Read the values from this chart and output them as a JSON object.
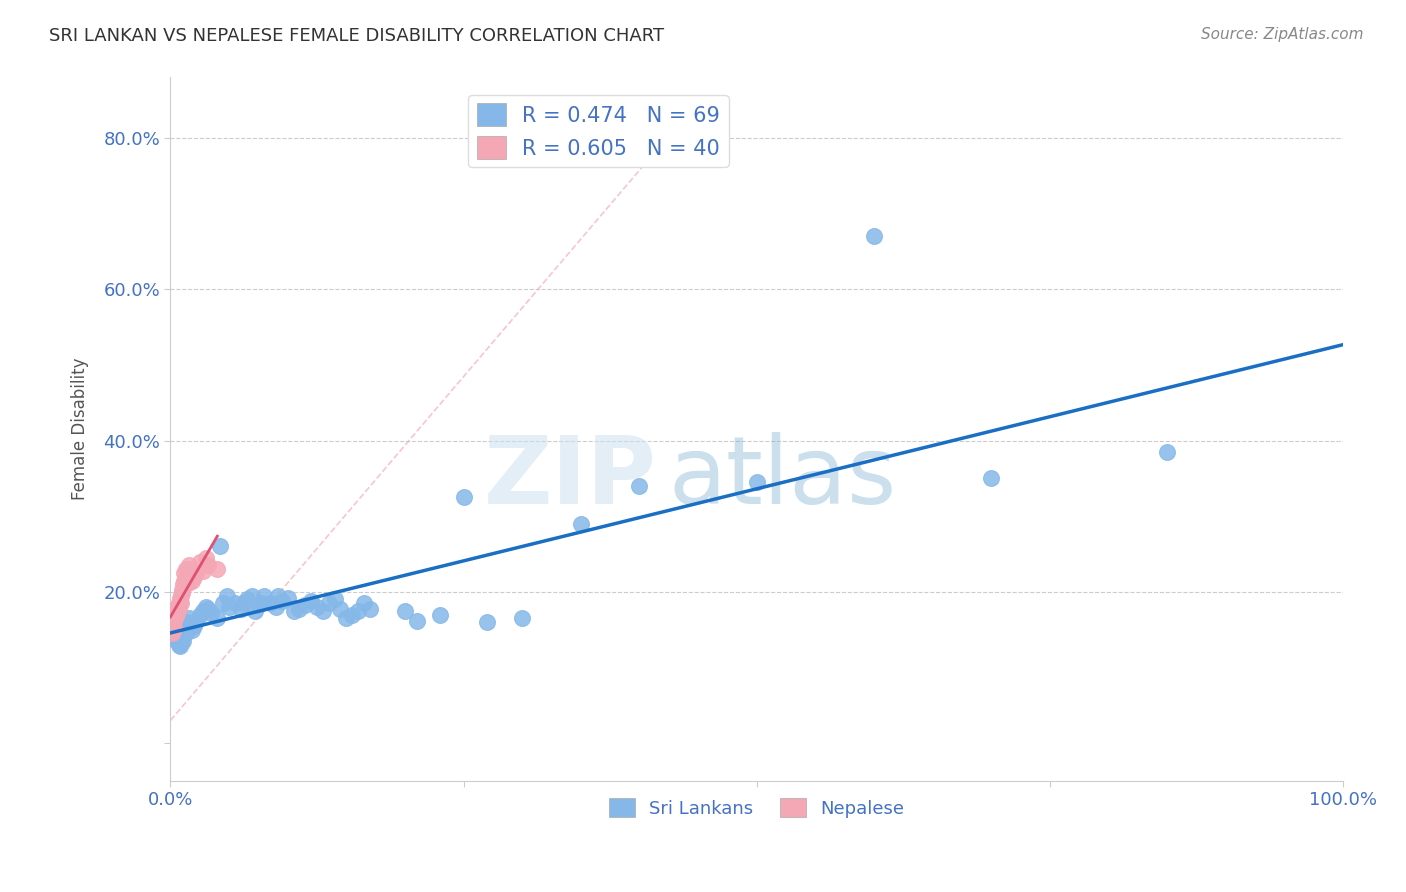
{
  "title": "SRI LANKAN VS NEPALESE FEMALE DISABILITY CORRELATION CHART",
  "source": "Source: ZipAtlas.com",
  "ylabel": "Female Disability",
  "legend_r_sri": "0.474",
  "legend_n_sri": "69",
  "legend_r_nep": "0.605",
  "legend_n_nep": "40",
  "legend_label_sri": "Sri Lankans",
  "legend_label_nep": "Nepalese",
  "sri_color": "#85b8e8",
  "sri_line_color": "#1a6fc4",
  "nep_color": "#f4a7b5",
  "nep_line_color": "#e05070",
  "nep_dashed_color": "#f4a7b5",
  "background_color": "#ffffff",
  "title_color": "#333333",
  "axis_color": "#4472c4",
  "grid_color": "#cccccc",
  "sri_scatter_x": [
    0.002,
    0.003,
    0.004,
    0.005,
    0.006,
    0.007,
    0.008,
    0.009,
    0.01,
    0.011,
    0.012,
    0.013,
    0.014,
    0.015,
    0.016,
    0.017,
    0.018,
    0.02,
    0.022,
    0.025,
    0.028,
    0.03,
    0.032,
    0.035,
    0.04,
    0.042,
    0.045,
    0.048,
    0.05,
    0.055,
    0.06,
    0.062,
    0.065,
    0.07,
    0.072,
    0.075,
    0.078,
    0.08,
    0.085,
    0.09,
    0.092,
    0.095,
    0.1,
    0.105,
    0.11,
    0.115,
    0.12,
    0.125,
    0.13,
    0.135,
    0.14,
    0.145,
    0.15,
    0.155,
    0.16,
    0.165,
    0.17,
    0.2,
    0.21,
    0.23,
    0.25,
    0.27,
    0.3,
    0.35,
    0.4,
    0.5,
    0.6,
    0.7,
    0.85
  ],
  "sri_scatter_y": [
    0.145,
    0.14,
    0.138,
    0.142,
    0.135,
    0.13,
    0.128,
    0.132,
    0.14,
    0.135,
    0.148,
    0.145,
    0.16,
    0.155,
    0.165,
    0.158,
    0.15,
    0.155,
    0.162,
    0.17,
    0.175,
    0.18,
    0.178,
    0.172,
    0.165,
    0.26,
    0.185,
    0.195,
    0.18,
    0.185,
    0.178,
    0.185,
    0.19,
    0.195,
    0.175,
    0.182,
    0.185,
    0.195,
    0.185,
    0.18,
    0.195,
    0.188,
    0.192,
    0.175,
    0.178,
    0.182,
    0.188,
    0.18,
    0.175,
    0.185,
    0.19,
    0.178,
    0.165,
    0.17,
    0.175,
    0.185,
    0.178,
    0.175,
    0.162,
    0.17,
    0.325,
    0.16,
    0.165,
    0.29,
    0.34,
    0.345,
    0.67,
    0.35,
    0.385
  ],
  "nep_scatter_x": [
    0.001,
    0.002,
    0.002,
    0.003,
    0.003,
    0.004,
    0.004,
    0.005,
    0.005,
    0.006,
    0.006,
    0.007,
    0.007,
    0.008,
    0.008,
    0.009,
    0.009,
    0.01,
    0.01,
    0.011,
    0.011,
    0.012,
    0.012,
    0.013,
    0.013,
    0.014,
    0.014,
    0.015,
    0.015,
    0.016,
    0.016,
    0.017,
    0.018,
    0.02,
    0.022,
    0.025,
    0.028,
    0.03,
    0.032,
    0.04
  ],
  "nep_scatter_y": [
    0.145,
    0.148,
    0.155,
    0.152,
    0.162,
    0.165,
    0.17,
    0.168,
    0.175,
    0.172,
    0.18,
    0.185,
    0.178,
    0.188,
    0.192,
    0.185,
    0.195,
    0.198,
    0.202,
    0.205,
    0.21,
    0.215,
    0.225,
    0.22,
    0.23,
    0.225,
    0.218,
    0.23,
    0.212,
    0.235,
    0.215,
    0.225,
    0.215,
    0.22,
    0.225,
    0.24,
    0.228,
    0.245,
    0.235,
    0.23
  ],
  "xlim": [
    0.0,
    1.0
  ],
  "ylim": [
    -0.05,
    0.88
  ]
}
